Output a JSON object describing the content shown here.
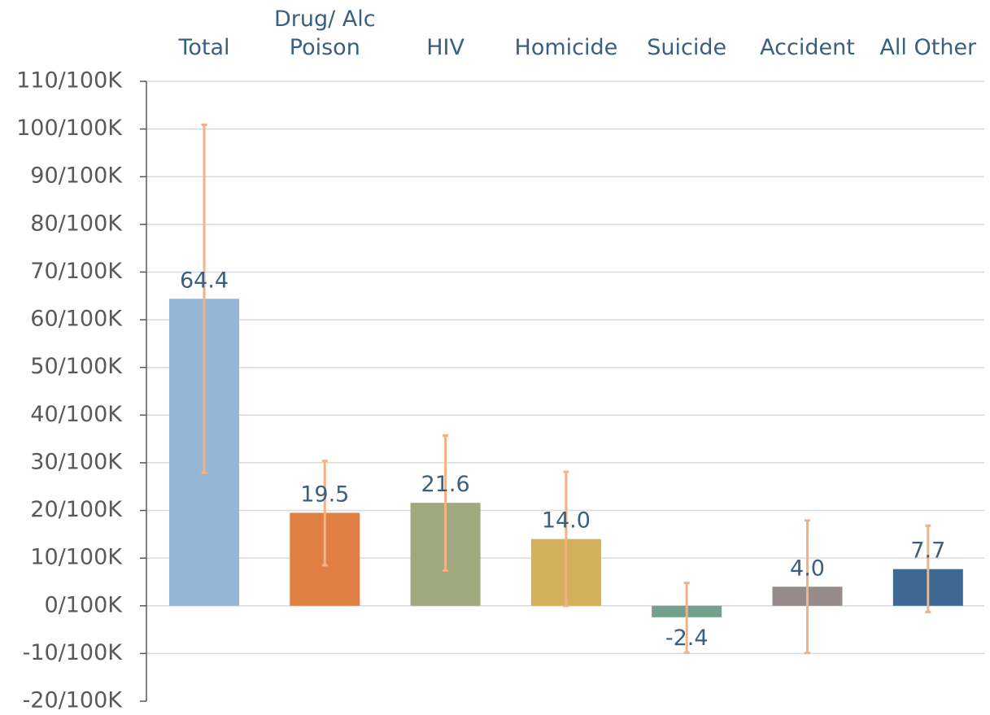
{
  "chart_data": {
    "type": "bar",
    "categories": [
      "Total",
      "Drug/ Alc\nPoison",
      "HIV",
      "Homicide",
      "Suicide",
      "Accident",
      "All Other"
    ],
    "values": [
      64.4,
      19.5,
      21.6,
      14.0,
      -2.4,
      4.0,
      7.7
    ],
    "value_labels": [
      "64.4",
      "19.5",
      "21.6",
      "14.0",
      "-2.4",
      "4.0",
      "7.7"
    ],
    "error_low": [
      27.9,
      8.5,
      7.4,
      0.0,
      -9.8,
      -9.9,
      -1.3
    ],
    "error_high": [
      100.9,
      30.4,
      35.7,
      28.1,
      4.8,
      17.9,
      16.8
    ],
    "bar_colors": [
      "#95b6d4",
      "#e07f42",
      "#a0a87d",
      "#d5b05c",
      "#76a08e",
      "#968a8a",
      "#3d6891"
    ],
    "error_color": "#f4b183",
    "ylim": [
      -20,
      110
    ],
    "yticks": [
      110,
      100,
      90,
      80,
      70,
      60,
      50,
      40,
      30,
      20,
      10,
      0,
      -10,
      -20
    ],
    "ytick_labels": [
      "110/100K",
      "100/100K",
      "90/100K",
      "80/100K",
      "70/100K",
      "60/100K",
      "50/100K",
      "40/100K",
      "30/100K",
      "20/100K",
      "10/100K",
      "0/100K",
      "-10/100K",
      "-20/100K"
    ],
    "category_axis_position": "top",
    "grid": true,
    "legend": "none",
    "title": "",
    "xlabel": "",
    "ylabel": ""
  }
}
